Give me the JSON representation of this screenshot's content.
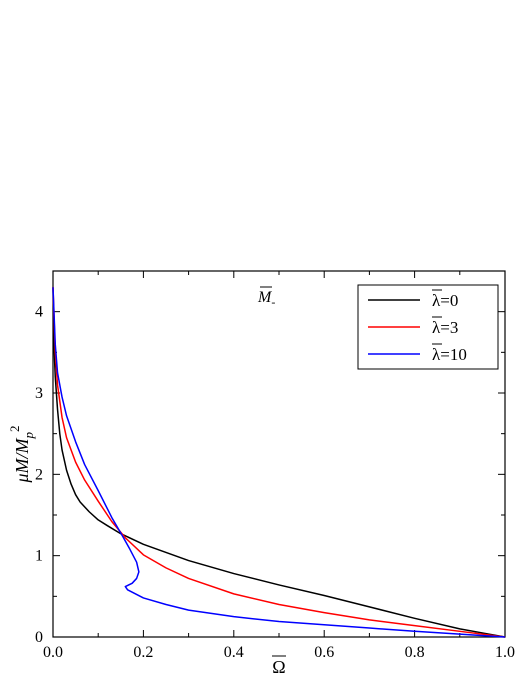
{
  "chart_data": {
    "type": "line",
    "xlabel": "Ω",
    "ylabel_base": "μM/M",
    "ylabel_sub": "p",
    "ylabel_sup": "2",
    "annotation": "M",
    "annotation_sub": "-",
    "xlim": [
      0.0,
      1.0
    ],
    "ylim": [
      0,
      4.5
    ],
    "xticks": [
      "0.0",
      "0.2",
      "0.4",
      "0.6",
      "0.8",
      "1.0"
    ],
    "yticks": [
      "0",
      "1",
      "2",
      "3",
      "4"
    ],
    "legend_position": "top-right",
    "grid": false,
    "series": [
      {
        "name": "λ=0",
        "legend_symbol": "λ",
        "legend_value": "=0",
        "color": "#000000",
        "points": [
          [
            0.0,
            4.3
          ],
          [
            0.002,
            3.6
          ],
          [
            0.005,
            3.2
          ],
          [
            0.01,
            2.8
          ],
          [
            0.015,
            2.5
          ],
          [
            0.02,
            2.3
          ],
          [
            0.03,
            2.05
          ],
          [
            0.04,
            1.88
          ],
          [
            0.05,
            1.75
          ],
          [
            0.06,
            1.66
          ],
          [
            0.08,
            1.54
          ],
          [
            0.1,
            1.44
          ],
          [
            0.12,
            1.37
          ],
          [
            0.15,
            1.27
          ],
          [
            0.2,
            1.14
          ],
          [
            0.3,
            0.94
          ],
          [
            0.4,
            0.78
          ],
          [
            0.5,
            0.64
          ],
          [
            0.6,
            0.51
          ],
          [
            0.7,
            0.37
          ],
          [
            0.8,
            0.23
          ],
          [
            0.9,
            0.1
          ],
          [
            0.95,
            0.05
          ],
          [
            1.0,
            0.0
          ]
        ]
      },
      {
        "name": "λ=3",
        "legend_symbol": "λ",
        "legend_value": "=3",
        "color": "#ff0000",
        "points": [
          [
            0.0,
            4.3
          ],
          [
            0.005,
            3.5
          ],
          [
            0.01,
            3.1
          ],
          [
            0.02,
            2.7
          ],
          [
            0.03,
            2.45
          ],
          [
            0.05,
            2.15
          ],
          [
            0.07,
            1.93
          ],
          [
            0.1,
            1.67
          ],
          [
            0.13,
            1.42
          ],
          [
            0.16,
            1.22
          ],
          [
            0.2,
            1.01
          ],
          [
            0.25,
            0.85
          ],
          [
            0.3,
            0.72
          ],
          [
            0.4,
            0.53
          ],
          [
            0.5,
            0.4
          ],
          [
            0.6,
            0.3
          ],
          [
            0.7,
            0.21
          ],
          [
            0.8,
            0.14
          ],
          [
            0.9,
            0.07
          ],
          [
            1.0,
            0.0
          ]
        ]
      },
      {
        "name": "λ=10",
        "legend_symbol": "λ",
        "legend_value": "=10",
        "color": "#0000ff",
        "points": [
          [
            0.0,
            4.3
          ],
          [
            0.005,
            3.6
          ],
          [
            0.01,
            3.25
          ],
          [
            0.02,
            2.95
          ],
          [
            0.03,
            2.72
          ],
          [
            0.05,
            2.4
          ],
          [
            0.07,
            2.12
          ],
          [
            0.1,
            1.8
          ],
          [
            0.13,
            1.47
          ],
          [
            0.155,
            1.23
          ],
          [
            0.17,
            1.08
          ],
          [
            0.185,
            0.92
          ],
          [
            0.19,
            0.8
          ],
          [
            0.185,
            0.72
          ],
          [
            0.175,
            0.66
          ],
          [
            0.16,
            0.62
          ],
          [
            0.165,
            0.58
          ],
          [
            0.2,
            0.48
          ],
          [
            0.25,
            0.4
          ],
          [
            0.3,
            0.33
          ],
          [
            0.4,
            0.25
          ],
          [
            0.5,
            0.19
          ],
          [
            0.6,
            0.15
          ],
          [
            0.7,
            0.11
          ],
          [
            0.8,
            0.07
          ],
          [
            0.9,
            0.035
          ],
          [
            1.0,
            0.0
          ]
        ]
      }
    ]
  }
}
